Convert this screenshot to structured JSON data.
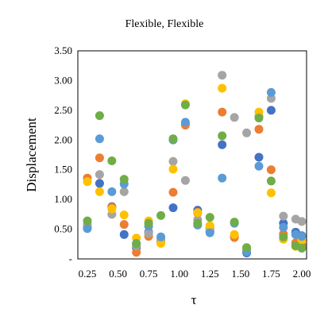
{
  "chart_data": {
    "type": "scatter",
    "title": "Flexible,  Flexible",
    "xlabel": "τ",
    "ylabel": "Displacement",
    "xlim": [
      0.25,
      2.0
    ],
    "ylim": [
      0,
      3.5
    ],
    "xticks": [
      "0.25",
      "0.50",
      "0.75",
      "1.00",
      "1.25",
      "1.50",
      "1.75",
      "2.00"
    ],
    "yticks": [
      "-",
      "0.50",
      "1.00",
      "1.50",
      "2.00",
      "2.50",
      "3.00",
      "3.50"
    ],
    "legend": "none",
    "grid": false,
    "series": [
      {
        "color": "#4472C4",
        "points": [
          [
            0.25,
            0.53
          ],
          [
            0.35,
            1.27
          ],
          [
            0.45,
            0.88
          ],
          [
            0.55,
            0.41
          ],
          [
            0.65,
            0.19
          ],
          [
            0.75,
            0.45
          ],
          [
            0.85,
            0.3
          ],
          [
            0.95,
            0.86
          ],
          [
            1.05,
            2.27
          ],
          [
            1.15,
            0.82
          ],
          [
            1.25,
            0.46
          ],
          [
            1.35,
            1.92
          ],
          [
            1.45,
            0.38
          ],
          [
            1.55,
            0.1
          ],
          [
            1.65,
            1.71
          ],
          [
            1.75,
            2.5
          ],
          [
            1.85,
            0.6
          ],
          [
            1.95,
            0.45
          ],
          [
            2.0,
            0.39
          ]
        ]
      },
      {
        "color": "#ED7D31",
        "points": [
          [
            0.25,
            1.36
          ],
          [
            0.35,
            1.7
          ],
          [
            0.45,
            0.87
          ],
          [
            0.55,
            0.58
          ],
          [
            0.65,
            0.11
          ],
          [
            0.75,
            0.38
          ],
          [
            0.85,
            0.29
          ],
          [
            0.95,
            1.12
          ],
          [
            1.05,
            2.25
          ],
          [
            1.15,
            0.77
          ],
          [
            1.25,
            0.53
          ],
          [
            1.35,
            2.47
          ],
          [
            1.45,
            0.36
          ],
          [
            1.55,
            0.15
          ],
          [
            1.65,
            2.18
          ],
          [
            1.75,
            1.5
          ],
          [
            1.85,
            0.42
          ],
          [
            1.95,
            0.27
          ],
          [
            2.0,
            0.23
          ]
        ]
      },
      {
        "color": "#A5A5A5",
        "points": [
          [
            0.25,
            0.58
          ],
          [
            0.35,
            1.42
          ],
          [
            0.45,
            0.75
          ],
          [
            0.55,
            1.13
          ],
          [
            0.65,
            0.22
          ],
          [
            0.75,
            0.43
          ],
          [
            0.85,
            0.33
          ],
          [
            0.95,
            1.64
          ],
          [
            1.05,
            1.32
          ],
          [
            1.15,
            0.66
          ],
          [
            1.25,
            0.5
          ],
          [
            1.35,
            3.09
          ],
          [
            1.45,
            2.38
          ],
          [
            1.55,
            2.12
          ],
          [
            1.65,
            2.4
          ],
          [
            1.75,
            2.7
          ],
          [
            1.85,
            0.72
          ],
          [
            1.95,
            0.67
          ],
          [
            2.0,
            0.63
          ]
        ]
      },
      {
        "color": "#FFC000",
        "points": [
          [
            0.25,
            1.3
          ],
          [
            0.35,
            1.13
          ],
          [
            0.45,
            0.84
          ],
          [
            0.55,
            0.74
          ],
          [
            0.65,
            0.35
          ],
          [
            0.75,
            0.64
          ],
          [
            0.85,
            0.26
          ],
          [
            0.95,
            1.51
          ],
          [
            1.05,
            2.61
          ],
          [
            1.15,
            0.78
          ],
          [
            1.25,
            0.56
          ],
          [
            1.35,
            2.87
          ],
          [
            1.45,
            0.41
          ],
          [
            1.55,
            0.18
          ],
          [
            1.65,
            2.47
          ],
          [
            1.75,
            1.11
          ],
          [
            1.85,
            0.33
          ],
          [
            1.95,
            0.21
          ],
          [
            2.0,
            0.32
          ]
        ]
      },
      {
        "color": "#5B9BD5",
        "points": [
          [
            0.25,
            0.51
          ],
          [
            0.35,
            2.02
          ],
          [
            0.45,
            1.13
          ],
          [
            0.55,
            1.26
          ],
          [
            0.65,
            0.26
          ],
          [
            0.75,
            0.55
          ],
          [
            0.85,
            0.37
          ],
          [
            0.95,
            2.0
          ],
          [
            1.05,
            2.3
          ],
          [
            1.15,
            0.57
          ],
          [
            1.25,
            0.44
          ],
          [
            1.35,
            1.36
          ],
          [
            1.45,
            0.6
          ],
          [
            1.55,
            0.12
          ],
          [
            1.65,
            1.56
          ],
          [
            1.75,
            2.8
          ],
          [
            1.85,
            0.53
          ],
          [
            1.95,
            0.41
          ],
          [
            2.0,
            0.38
          ]
        ]
      },
      {
        "color": "#70AD47",
        "points": [
          [
            0.25,
            0.64
          ],
          [
            0.35,
            2.41
          ],
          [
            0.45,
            1.65
          ],
          [
            0.55,
            1.34
          ],
          [
            0.65,
            0.25
          ],
          [
            0.75,
            0.6
          ],
          [
            0.85,
            0.73
          ],
          [
            0.95,
            2.02
          ],
          [
            1.05,
            2.59
          ],
          [
            1.15,
            0.6
          ],
          [
            1.25,
            0.7
          ],
          [
            1.35,
            2.07
          ],
          [
            1.45,
            0.62
          ],
          [
            1.55,
            0.19
          ],
          [
            1.65,
            2.37
          ],
          [
            1.75,
            1.31
          ],
          [
            1.85,
            0.37
          ],
          [
            1.95,
            0.22
          ],
          [
            2.0,
            0.18
          ]
        ]
      }
    ]
  }
}
